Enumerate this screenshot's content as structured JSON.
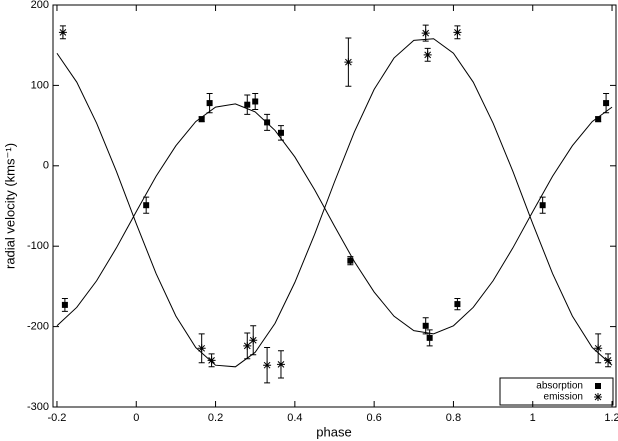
{
  "chart_data": {
    "type": "scatter",
    "xlabel": "phase",
    "ylabel": "radial velocity (kms⁻¹)",
    "xlim": [
      -0.21,
      1.21
    ],
    "ylim": [
      -300,
      200
    ],
    "xticks": [
      -0.2,
      0,
      0.2,
      0.4,
      0.6,
      0.8,
      1,
      1.2
    ],
    "yticks": [
      -300,
      -200,
      -100,
      0,
      100,
      200
    ],
    "legend": "lower right",
    "color": "#000000",
    "series": [
      {
        "name": "absorption",
        "marker": "square",
        "x": [
          -0.18,
          0.025,
          0.165,
          0.185,
          0.28,
          0.3,
          0.33,
          0.365,
          0.54,
          0.73,
          0.74,
          0.81,
          1.025,
          1.165,
          1.185
        ],
        "values": [
          -173,
          -49,
          58,
          78,
          76,
          80,
          54,
          41,
          -118,
          -199,
          -214,
          -172,
          -49,
          58,
          78
        ],
        "errors": [
          8,
          10,
          3,
          12,
          12,
          10,
          10,
          9,
          5,
          10,
          10,
          7,
          10,
          3,
          12
        ]
      },
      {
        "name": "emission",
        "marker": "asterisk",
        "x": [
          -0.185,
          0.165,
          0.19,
          0.28,
          0.295,
          0.33,
          0.365,
          0.535,
          0.73,
          0.735,
          0.81,
          1.165,
          1.19
        ],
        "values": [
          166,
          -227,
          -242,
          -224,
          -217,
          -248,
          -247,
          129,
          165,
          138,
          166,
          -227,
          -242
        ],
        "errors": [
          8,
          18,
          8,
          16,
          18,
          22,
          17,
          30,
          10,
          8,
          8,
          18,
          8
        ]
      }
    ],
    "curve_x": [
      -0.2,
      -0.15,
      -0.1,
      -0.05,
      0,
      0.05,
      0.1,
      0.15,
      0.2,
      0.25,
      0.3,
      0.35,
      0.4,
      0.45,
      0.5,
      0.55,
      0.6,
      0.65,
      0.7,
      0.75,
      0.8,
      0.85,
      0.9,
      0.95,
      1.0,
      1.05,
      1.1,
      1.15,
      1.2
    ],
    "curves": [
      {
        "values": [
          -199,
          -176,
          -143,
          -102,
          -57,
          -13,
          25,
          55,
          73,
          77,
          67,
          44,
          11,
          -30,
          -75,
          -119,
          -157,
          -187,
          -205,
          -209,
          -199,
          -176,
          -143,
          -102,
          -57,
          -13,
          25,
          55,
          73
        ]
      },
      {
        "values": [
          140,
          104,
          53,
          -7,
          -72,
          -134,
          -187,
          -226,
          -248,
          -250,
          -232,
          -196,
          -145,
          -85,
          -20,
          42,
          95,
          134,
          156,
          158,
          140,
          104,
          53,
          -7,
          -72,
          -134,
          -187,
          -226,
          -248
        ]
      }
    ]
  }
}
